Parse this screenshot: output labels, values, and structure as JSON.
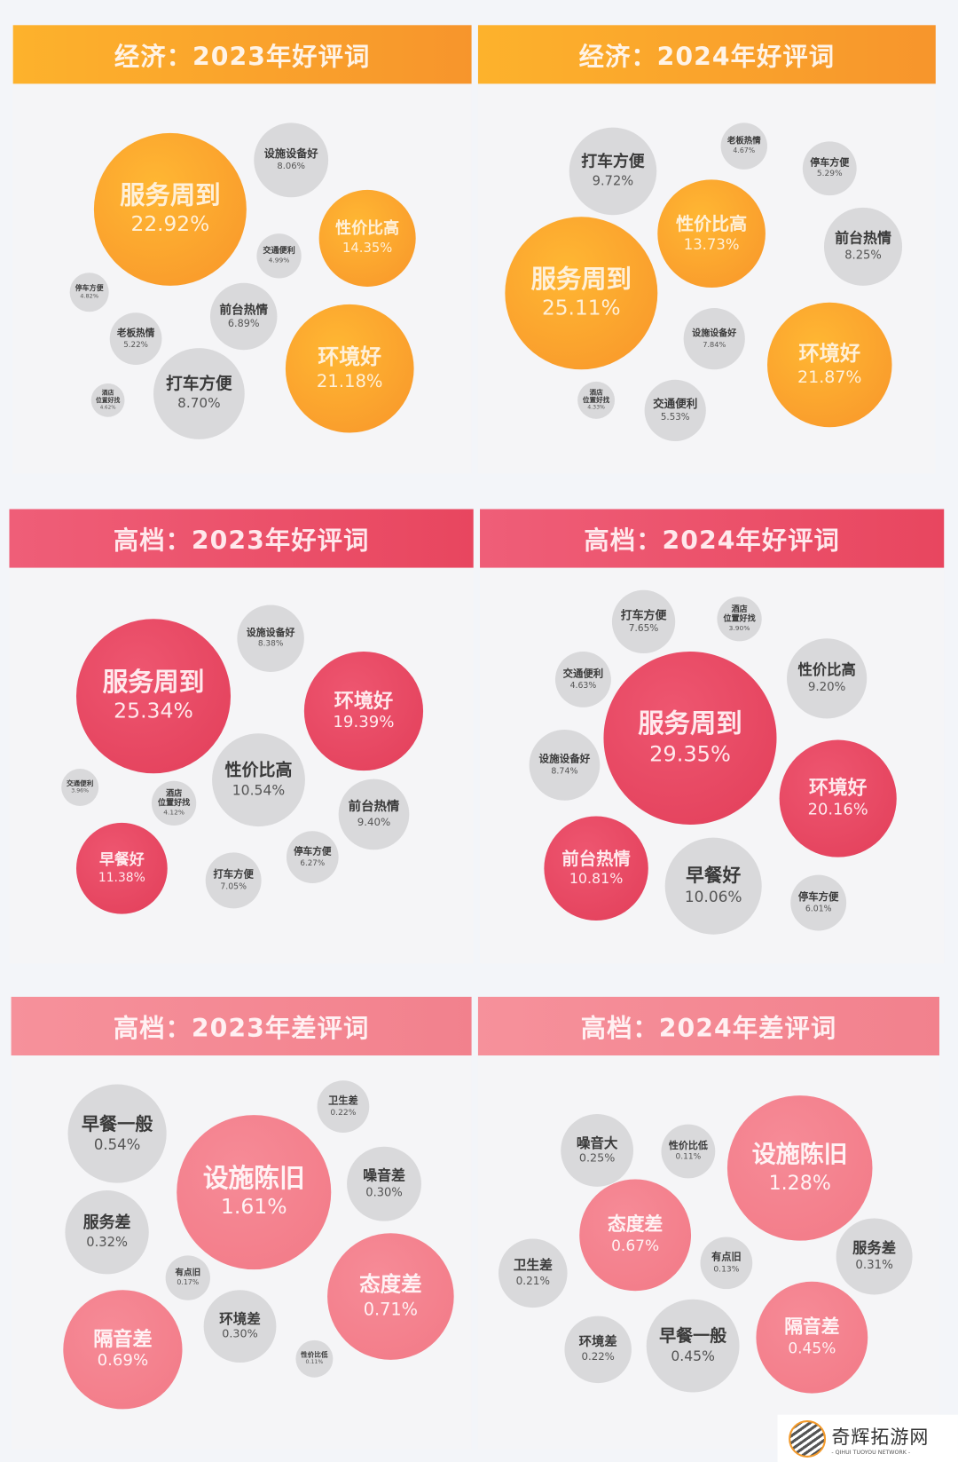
{
  "chart_data": [
    {
      "type": "bubble",
      "title": "经济：2023年好评词",
      "theme": "orange",
      "highlight_color": "#f8a02c",
      "items": [
        {
          "label": "服务周到",
          "value": "22.92%",
          "highlight": true
        },
        {
          "label": "设施设备好",
          "value": "8.06%"
        },
        {
          "label": "性价比高",
          "value": "14.35%",
          "highlight": true
        },
        {
          "label": "交通便利",
          "value": "4.99%"
        },
        {
          "label": "停车方便",
          "value": "4.82%"
        },
        {
          "label": "前台热情",
          "value": "6.89%"
        },
        {
          "label": "老板热情",
          "value": "5.22%"
        },
        {
          "label": "环境好",
          "value": "21.18%",
          "highlight": true
        },
        {
          "label": "打车方便",
          "value": "8.70%"
        },
        {
          "label": "酒店\n位置好找",
          "value": "4.62%"
        }
      ]
    },
    {
      "type": "bubble",
      "title": "经济：2024年好评词",
      "theme": "orange",
      "highlight_color": "#f8a02c",
      "items": [
        {
          "label": "老板热情",
          "value": "4.67%"
        },
        {
          "label": "打车方便",
          "value": "9.72%"
        },
        {
          "label": "停车方便",
          "value": "5.29%"
        },
        {
          "label": "性价比高",
          "value": "13.73%",
          "highlight": true
        },
        {
          "label": "前台热情",
          "value": "8.25%"
        },
        {
          "label": "服务周到",
          "value": "25.11%",
          "highlight": true
        },
        {
          "label": "设施设备好",
          "value": "7.84%"
        },
        {
          "label": "环境好",
          "value": "21.87%",
          "highlight": true
        },
        {
          "label": "酒店\n位置好找",
          "value": "4.33%"
        },
        {
          "label": "交通便利",
          "value": "5.53%"
        }
      ]
    },
    {
      "type": "bubble",
      "title": "高档：2023年好评词",
      "theme": "red",
      "highlight_color": "#e84a63",
      "items": [
        {
          "label": "服务周到",
          "value": "25.34%",
          "highlight": true
        },
        {
          "label": "设施设备好",
          "value": "8.38%"
        },
        {
          "label": "环境好",
          "value": "19.39%",
          "highlight": true
        },
        {
          "label": "性价比高",
          "value": "10.54%"
        },
        {
          "label": "交通便利",
          "value": "3.96%"
        },
        {
          "label": "酒店\n位置好找",
          "value": "4.12%"
        },
        {
          "label": "前台热情",
          "value": "9.40%"
        },
        {
          "label": "早餐好",
          "value": "11.38%",
          "highlight": true
        },
        {
          "label": "停车方便",
          "value": "6.27%"
        },
        {
          "label": "打车方便",
          "value": "7.05%"
        }
      ]
    },
    {
      "type": "bubble",
      "title": "高档：2024年好评词",
      "theme": "red",
      "highlight_color": "#e84a63",
      "items": [
        {
          "label": "打车方便",
          "value": "7.65%"
        },
        {
          "label": "酒店\n位置好找",
          "value": "3.90%"
        },
        {
          "label": "交通便利",
          "value": "4.63%"
        },
        {
          "label": "性价比高",
          "value": "9.20%"
        },
        {
          "label": "服务周到",
          "value": "29.35%",
          "highlight": true
        },
        {
          "label": "设施设备好",
          "value": "8.74%"
        },
        {
          "label": "环境好",
          "value": "20.16%",
          "highlight": true
        },
        {
          "label": "前台热情",
          "value": "10.81%",
          "highlight": true
        },
        {
          "label": "早餐好",
          "value": "10.06%"
        },
        {
          "label": "停车方便",
          "value": "6.01%"
        }
      ]
    },
    {
      "type": "bubble",
      "title": "高档：2023年差评词",
      "theme": "pink",
      "highlight_color": "#f47c8a",
      "items": [
        {
          "label": "早餐一般",
          "value": "0.54%"
        },
        {
          "label": "卫生差",
          "value": "0.22%"
        },
        {
          "label": "设施陈旧",
          "value": "1.61%",
          "highlight": true
        },
        {
          "label": "噪音差",
          "value": "0.30%"
        },
        {
          "label": "服务差",
          "value": "0.32%"
        },
        {
          "label": "有点旧",
          "value": "0.17%"
        },
        {
          "label": "态度差",
          "value": "0.71%",
          "highlight": true
        },
        {
          "label": "隔音差",
          "value": "0.69%",
          "highlight": true
        },
        {
          "label": "环境差",
          "value": "0.30%"
        },
        {
          "label": "性价比低",
          "value": "0.11%"
        }
      ]
    },
    {
      "type": "bubble",
      "title": "高档：2024年差评词",
      "theme": "pink",
      "highlight_color": "#f47c8a",
      "items": [
        {
          "label": "噪音大",
          "value": "0.25%"
        },
        {
          "label": "性价比低",
          "value": "0.11%"
        },
        {
          "label": "设施陈旧",
          "value": "1.28%",
          "highlight": true
        },
        {
          "label": "态度差",
          "value": "0.67%",
          "highlight": true
        },
        {
          "label": "卫生差",
          "value": "0.21%"
        },
        {
          "label": "有点旧",
          "value": "0.13%"
        },
        {
          "label": "服务差",
          "value": "0.31%"
        },
        {
          "label": "隔音差",
          "value": "0.45%",
          "highlight": true
        },
        {
          "label": "环境差",
          "value": "0.22%"
        },
        {
          "label": "早餐一般",
          "value": "0.45%"
        }
      ]
    }
  ],
  "watermark": {
    "name": "奇辉拓游网",
    "subtitle": "- QIHUI TUOYOU NETWORK -"
  }
}
